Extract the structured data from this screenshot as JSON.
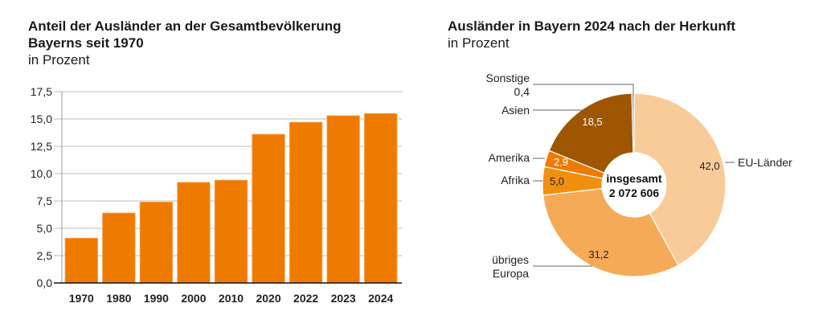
{
  "chart_data": [
    {
      "type": "bar",
      "title_line1": "Anteil der Ausländer an der Gesamtbevölkerung",
      "title_line2": "Bayerns seit 1970",
      "subtitle": "in Prozent",
      "categories": [
        "1970",
        "1980",
        "1990",
        "2000",
        "2010",
        "2020",
        "2022",
        "2023",
        "2024"
      ],
      "values": [
        4.1,
        6.4,
        7.4,
        9.2,
        9.4,
        13.6,
        14.7,
        15.3,
        15.5
      ],
      "ylim": [
        0,
        17.5
      ],
      "yticks": [
        "0,0",
        "2,5",
        "5,0",
        "7,5",
        "10,0",
        "12,5",
        "15,0",
        "17,5"
      ],
      "grid": true,
      "bar_color": "#ee7b00"
    },
    {
      "type": "pie",
      "variant": "donut",
      "title": "Ausländer in Bayern 2024 nach der Herkunft",
      "subtitle": "in Prozent",
      "center_label": "insgesamt",
      "center_value": "2 072 606",
      "slices": [
        {
          "name": "EU-Länder",
          "value": 42.0,
          "label": "42,0",
          "color": "#f9cb98"
        },
        {
          "name": "übriges Europa",
          "value": 31.2,
          "label": "31,2",
          "color": "#f5aa58"
        },
        {
          "name": "Afrika",
          "value": 5.0,
          "label": "5,0",
          "color": "#f0900f"
        },
        {
          "name": "Amerika",
          "value": 2.9,
          "label": "2,9",
          "color": "#ee7b00"
        },
        {
          "name": "Asien",
          "value": 18.5,
          "label": "18,5",
          "color": "#9e5600"
        },
        {
          "name": "Sonstige",
          "value": 0.4,
          "label": "0,4",
          "color": "#9a9a9a"
        }
      ]
    }
  ]
}
